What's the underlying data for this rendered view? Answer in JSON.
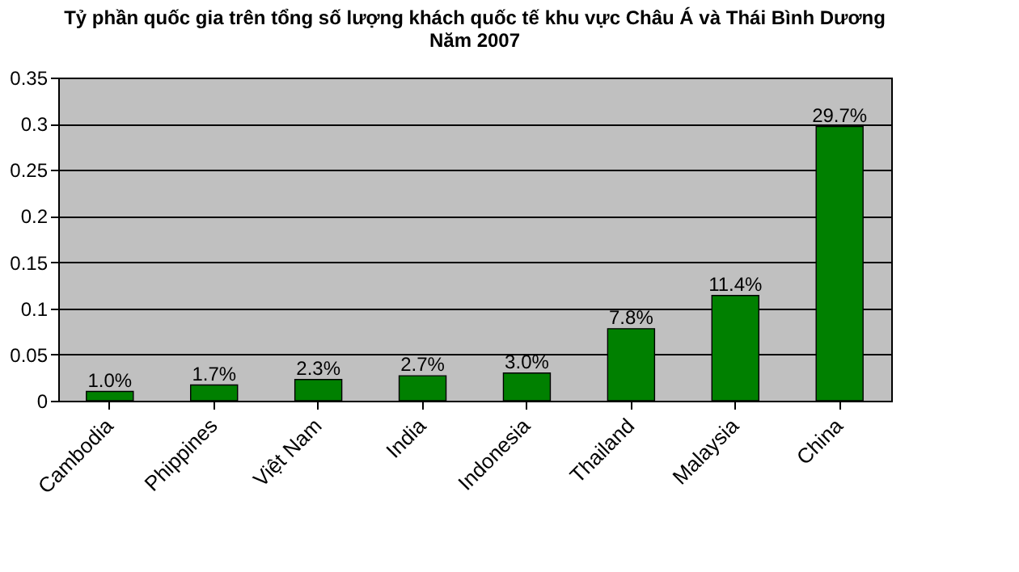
{
  "chart_data": {
    "type": "bar",
    "title": [
      "Tỷ phần quốc gia trên tổng số lượng khách quốc tế khu vực Châu Á và Thái Bình Dương",
      "Năm 2007"
    ],
    "categories": [
      "Cambodia",
      "Phippines",
      "Việt Nam",
      "India",
      "Indonesia",
      "Thailand",
      "Malaysia",
      "China"
    ],
    "values": [
      0.01,
      0.017,
      0.023,
      0.027,
      0.03,
      0.078,
      0.114,
      0.297
    ],
    "value_labels": [
      "1.0%",
      "1.7%",
      "2.3%",
      "2.7%",
      "3.0%",
      "7.8%",
      "11.4%",
      "29.7%"
    ],
    "color": "#008000",
    "ylim": [
      0,
      0.35
    ],
    "yticks": [
      0,
      0.05,
      0.1,
      0.15,
      0.2,
      0.25,
      0.3,
      0.35
    ],
    "grid": "y"
  }
}
